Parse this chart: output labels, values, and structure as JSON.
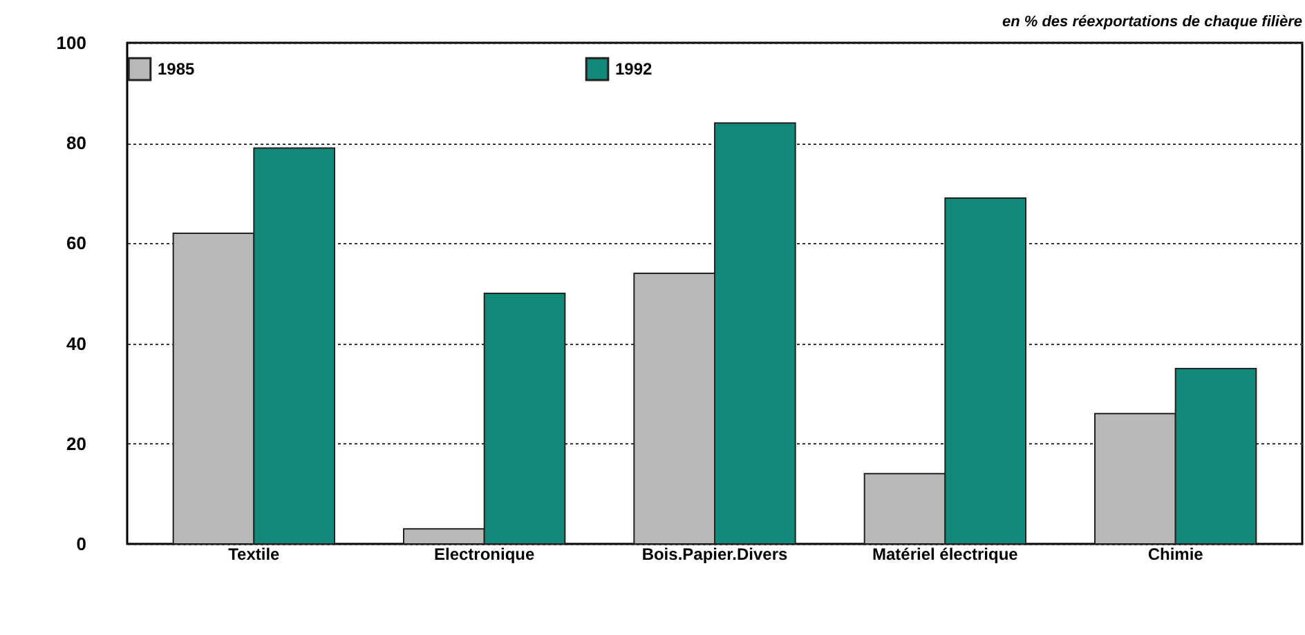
{
  "chart_data": {
    "type": "bar",
    "subtitle": "en % des réexportations de chaque filière",
    "categories": [
      "Textile",
      "Electronique",
      "Bois.Papier.Divers",
      "Matériel électrique",
      "Chimie"
    ],
    "series": [
      {
        "name": "1985",
        "color": "#b8b8b8",
        "values": [
          62,
          3,
          54,
          14,
          26
        ]
      },
      {
        "name": "1992",
        "color": "#13897a",
        "values": [
          79,
          50,
          84,
          69,
          35
        ]
      }
    ],
    "ylim": [
      0,
      100
    ],
    "yticks": [
      0,
      20,
      40,
      60,
      80,
      100
    ],
    "grid": "y",
    "legend": "top"
  }
}
